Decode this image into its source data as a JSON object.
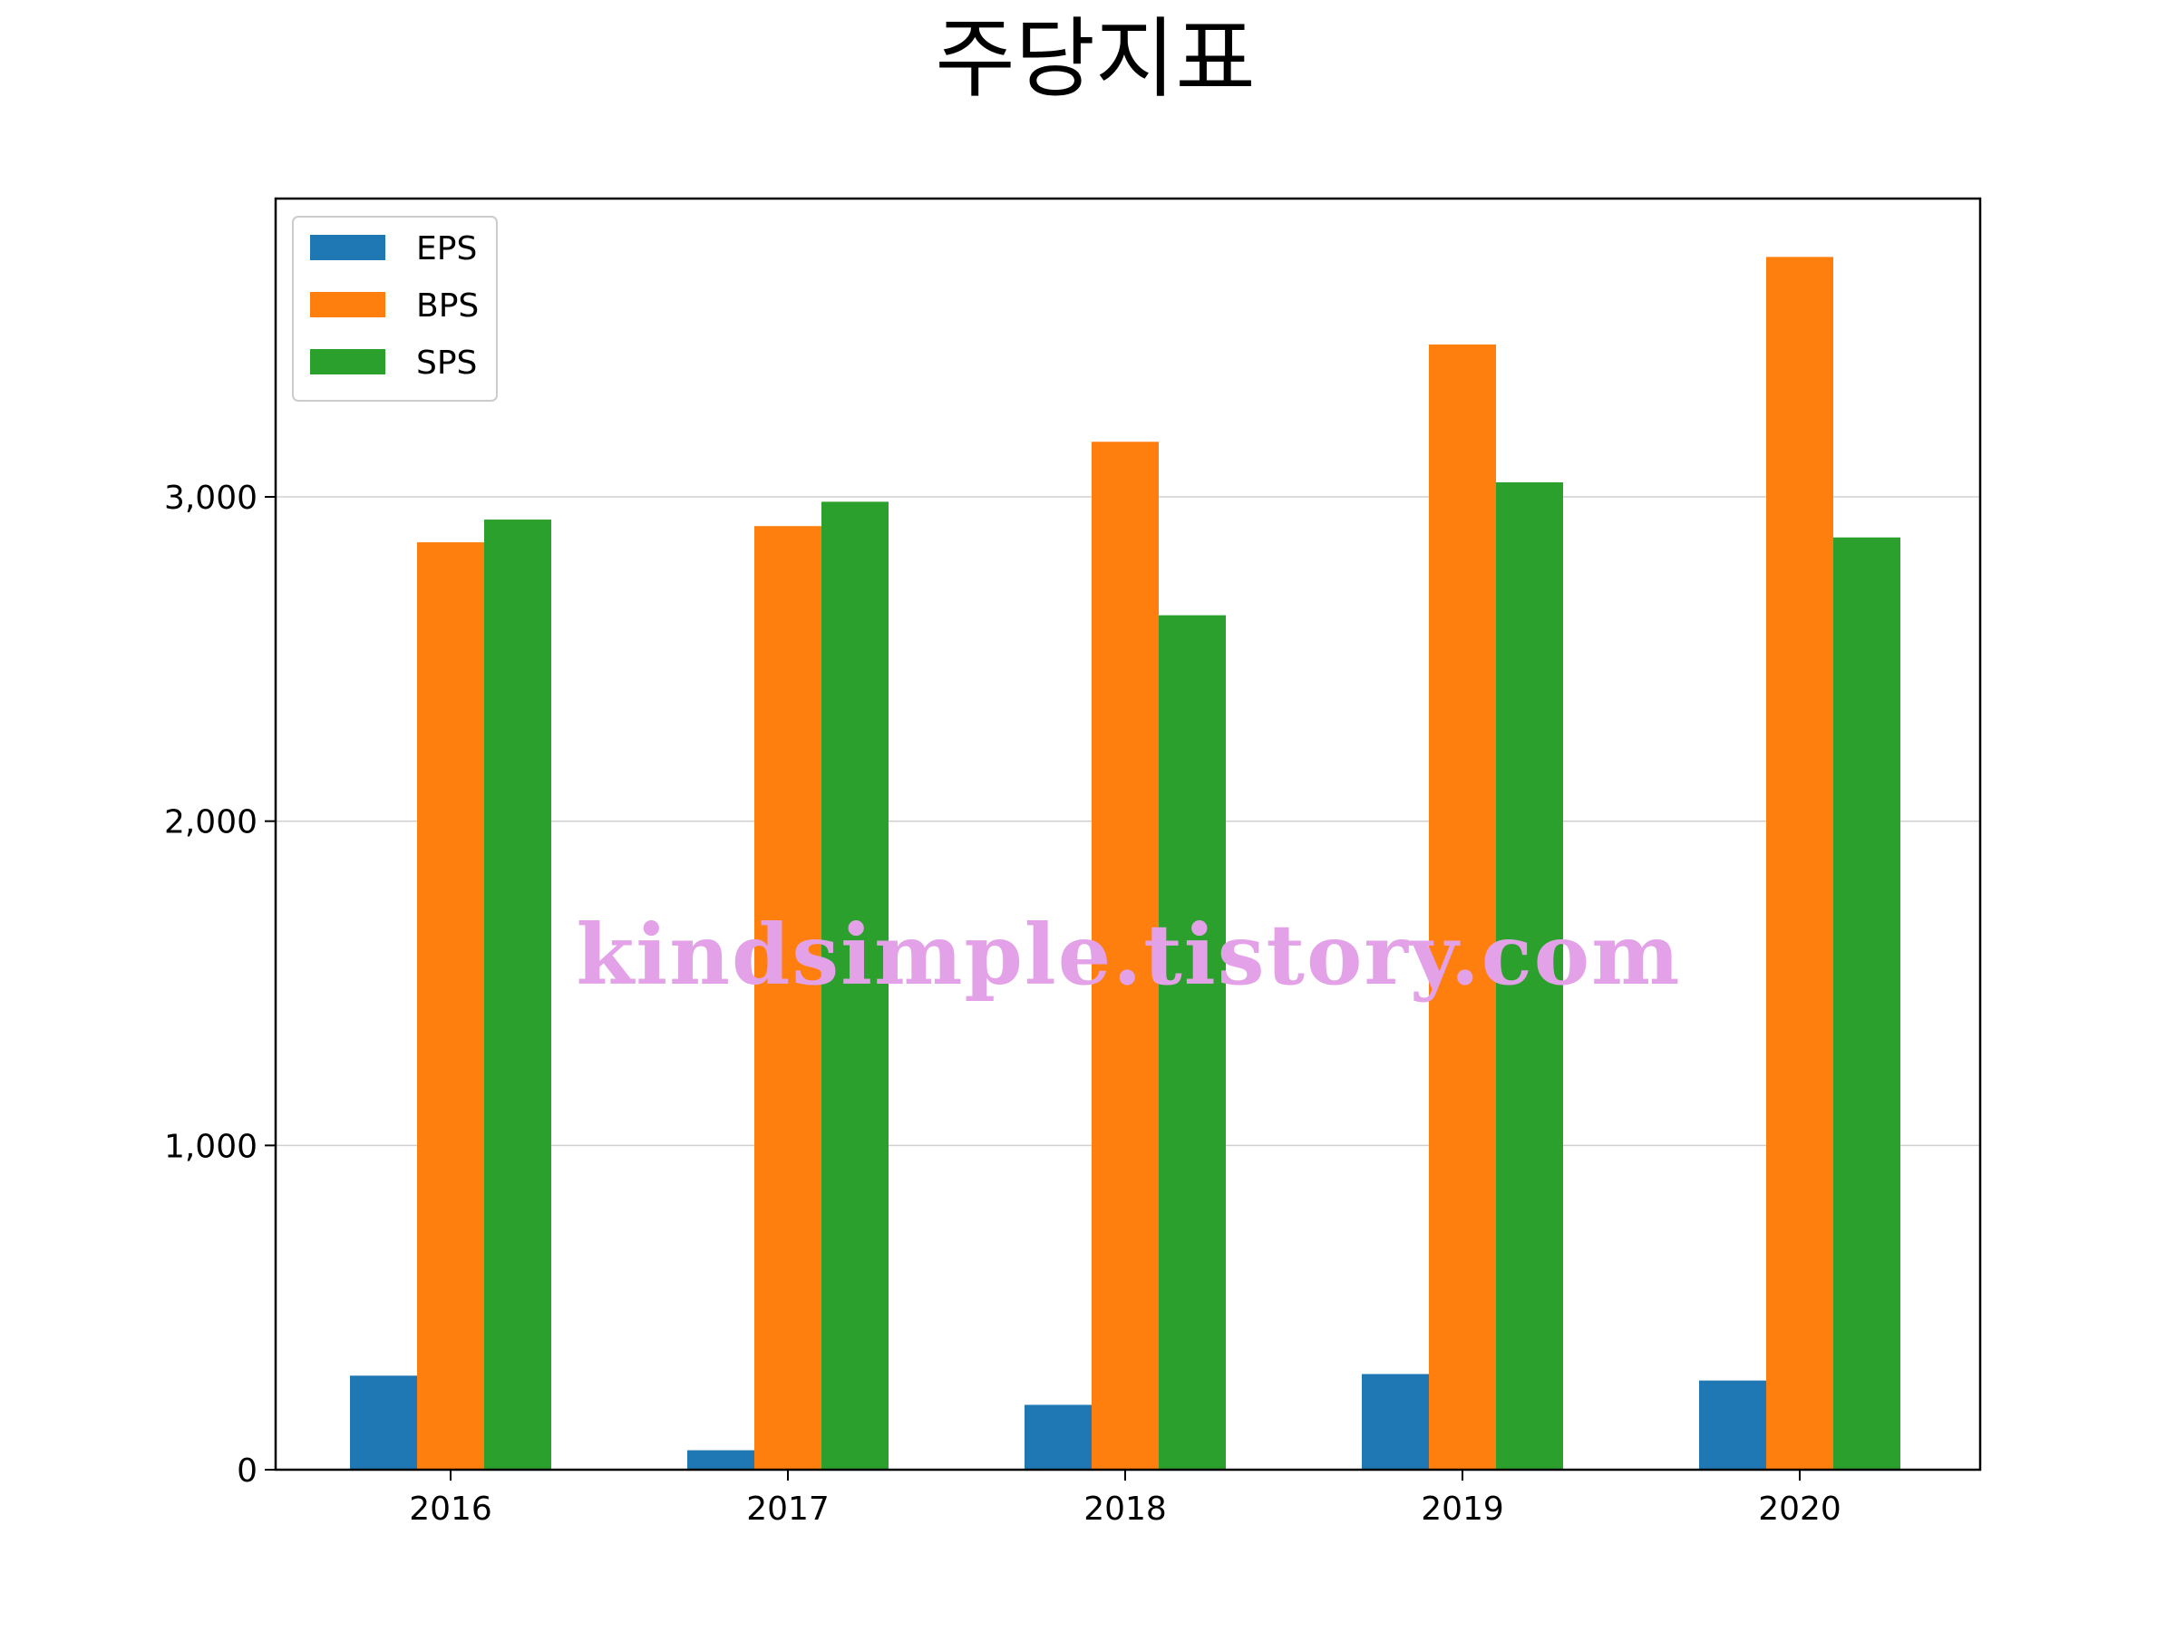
{
  "chart_data": {
    "type": "bar",
    "title": "주당지표",
    "xlabel": "",
    "ylabel": "",
    "categories": [
      "2016",
      "2017",
      "2018",
      "2019",
      "2020"
    ],
    "series": [
      {
        "name": "EPS",
        "color": "#1f77b4",
        "values": [
          290,
          60,
          200,
          295,
          275
        ]
      },
      {
        "name": "BPS",
        "color": "#ff7f0e",
        "values": [
          2860,
          2910,
          3170,
          3470,
          3740
        ]
      },
      {
        "name": "SPS",
        "color": "#2ca02c",
        "values": [
          2930,
          2985,
          2635,
          3045,
          2875
        ]
      }
    ],
    "ylim": [
      0,
      3920
    ],
    "yticks": [
      0,
      1000,
      2000,
      3000
    ],
    "ytick_labels": [
      "0",
      "1,000",
      "2,000",
      "3,000"
    ],
    "grid": "horizontal",
    "legend_position": "top-left"
  },
  "watermark": "kindsimple.tistory.com"
}
